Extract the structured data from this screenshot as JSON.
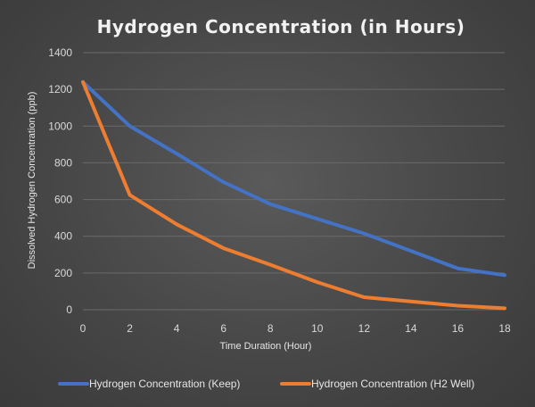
{
  "chart_data": {
    "type": "line",
    "title": "Hydrogen Concentration (in Hours)",
    "xlabel": "Time Duration (Hour)",
    "ylabel": "Dissolved Hydrogen Concentration (ppb)",
    "x": [
      0,
      2,
      4,
      6,
      8,
      10,
      12,
      14,
      16,
      18
    ],
    "xlim": [
      0,
      18
    ],
    "ylim": [
      0,
      1400
    ],
    "x_ticks": [
      0,
      2,
      4,
      6,
      8,
      10,
      12,
      14,
      16,
      18
    ],
    "y_ticks": [
      0,
      200,
      400,
      600,
      800,
      1000,
      1200,
      1400
    ],
    "grid": true,
    "legend_position": "bottom",
    "series": [
      {
        "name": "Hydrogen Concentration (Keep)",
        "color": "#4472C4",
        "values": [
          1240,
          1000,
          850,
          695,
          575,
          495,
          415,
          320,
          225,
          188
        ]
      },
      {
        "name": "Hydrogen Concentration (H2 Well)",
        "color": "#ED7D31",
        "values": [
          1240,
          625,
          465,
          335,
          245,
          150,
          68,
          45,
          22,
          8
        ]
      }
    ]
  }
}
